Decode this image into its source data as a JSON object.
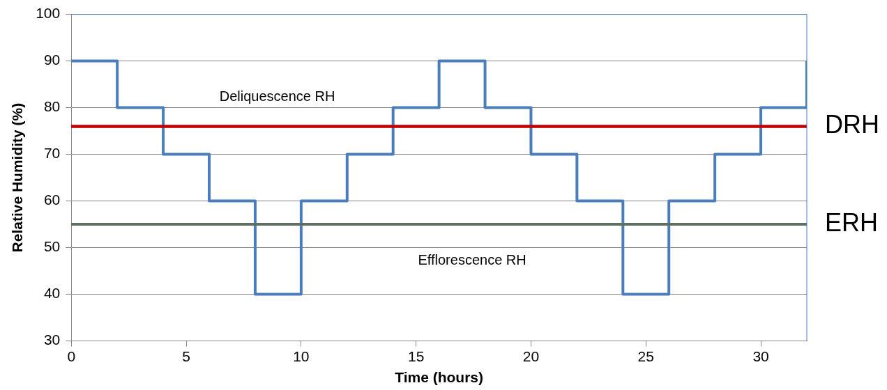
{
  "chart_data": {
    "type": "step",
    "xlabel": "Time (hours)",
    "ylabel": "Relative Humidity (%)",
    "x": [
      0,
      2,
      4,
      6,
      8,
      10,
      12,
      14,
      16,
      18,
      20,
      22,
      24,
      26,
      28,
      30,
      32
    ],
    "series": [
      {
        "color": "#4a7ebb",
        "values": [
          90,
          80,
          70,
          60,
          40,
          60,
          70,
          80,
          90,
          80,
          70,
          60,
          40,
          60,
          70,
          80,
          90
        ]
      }
    ],
    "xlim": [
      0,
      32
    ],
    "xticks": [
      0,
      5,
      10,
      15,
      20,
      25,
      30
    ],
    "ylim": [
      30,
      100
    ],
    "yticks": [
      30,
      40,
      50,
      60,
      70,
      80,
      90,
      100
    ],
    "ref_lines": [
      {
        "axis": "y",
        "value": 76,
        "label": "DRH",
        "color": "#c00000"
      },
      {
        "axis": "y",
        "value": 55,
        "label": "ERH",
        "color": "#5f6f62"
      }
    ],
    "annotations": [
      "Deliquescence RH",
      "Efflorescence RH"
    ],
    "grid": "y",
    "legend": false,
    "marker": "none",
    "line_style": "solid"
  }
}
